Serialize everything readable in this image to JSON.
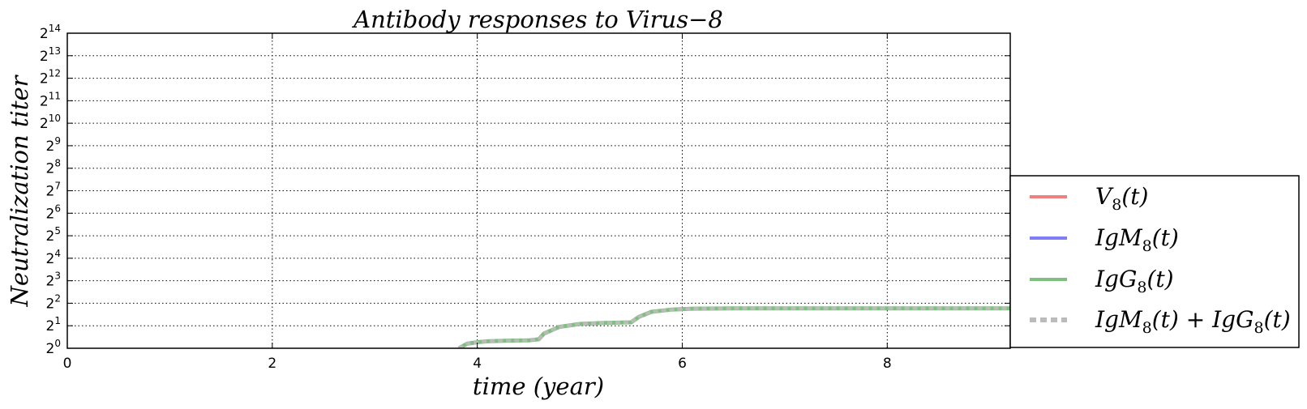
{
  "chart_data": {
    "type": "line",
    "title": "Antibody responses to Virus−8",
    "xlabel": "time (year)",
    "ylabel": "Neutralization titer",
    "xlim": [
      0,
      9.2
    ],
    "ylim_log2": [
      0,
      14
    ],
    "yscale": "log2",
    "x_ticks": [
      0,
      2,
      4,
      6,
      8
    ],
    "y_tick_base": "2",
    "y_tick_exponents": [
      0,
      1,
      2,
      3,
      4,
      5,
      6,
      7,
      8,
      9,
      10,
      11,
      12,
      13,
      14
    ],
    "grid": true,
    "legend_position": "lower-right, outside plot",
    "series": [
      {
        "name": "V_8(t)",
        "label_main": "V",
        "label_sub": "8",
        "label_tail": "(t)",
        "color": "#f08080",
        "style": "solid",
        "x": [],
        "y_log2": []
      },
      {
        "name": "IgM_8(t)",
        "label_main": "IgM",
        "label_sub": "8",
        "label_tail": "(t)",
        "color": "#7f7ff5",
        "style": "solid",
        "x": [],
        "y_log2": []
      },
      {
        "name": "IgG_8(t)",
        "label_main": "IgG",
        "label_sub": "8",
        "label_tail": "(t)",
        "color": "#7fbf7f",
        "style": "solid",
        "x": [
          3.82,
          3.9,
          4.0,
          4.1,
          4.3,
          4.5,
          4.6,
          4.65,
          4.8,
          5.0,
          5.2,
          5.4,
          5.5,
          5.58,
          5.7,
          5.9,
          6.1,
          6.5,
          7.0,
          8.0,
          9.2
        ],
        "y_log2": [
          0.0,
          0.2,
          0.27,
          0.31,
          0.34,
          0.35,
          0.4,
          0.65,
          0.95,
          1.08,
          1.12,
          1.14,
          1.15,
          1.4,
          1.62,
          1.72,
          1.76,
          1.77,
          1.77,
          1.77,
          1.77
        ]
      },
      {
        "name": "IgM_8(t)+IgG_8(t)",
        "label_main": "IgM",
        "label_sub": "8",
        "label_tail": "(t) + IgG",
        "label_sub2": "8",
        "label_tail2": "(t)",
        "color": "#bbbbbb",
        "style": "dotted",
        "x": [
          3.82,
          3.9,
          4.0,
          4.1,
          4.3,
          4.5,
          4.6,
          4.65,
          4.8,
          5.0,
          5.2,
          5.4,
          5.5,
          5.58,
          5.7,
          5.9,
          6.1,
          6.5,
          7.0,
          8.0,
          9.2
        ],
        "y_log2": [
          0.0,
          0.2,
          0.27,
          0.31,
          0.34,
          0.35,
          0.4,
          0.65,
          0.95,
          1.08,
          1.12,
          1.14,
          1.15,
          1.4,
          1.62,
          1.72,
          1.76,
          1.77,
          1.77,
          1.77,
          1.77
        ]
      }
    ]
  }
}
